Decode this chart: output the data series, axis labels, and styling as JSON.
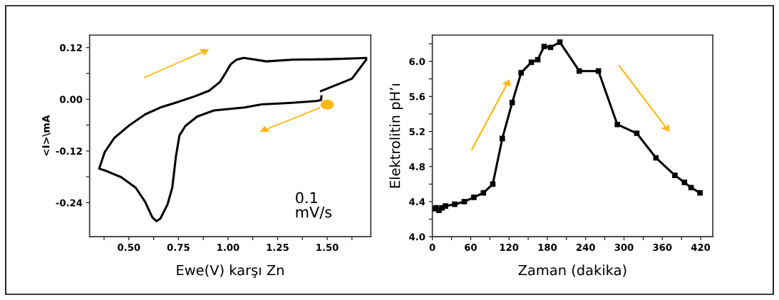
{
  "chart_data": [
    {
      "type": "line",
      "xlabel": "Ewe(V) karşı Zn",
      "ylabel": "<I>\\mA",
      "annotations": [
        "0.1\nmV/s"
      ],
      "xlim": [
        0.302,
        1.72
      ],
      "ylim": [
        -0.319,
        0.149
      ],
      "xticks": [
        {
          "value": 0.375,
          "label": null
        },
        {
          "value": 0.5,
          "label": "0.50"
        },
        {
          "value": 0.625,
          "label": null
        },
        0.75,
        {
          "value": 0.875,
          "label": null
        },
        {
          "value": 1.0,
          "label": "1.00"
        },
        {
          "value": 1.125,
          "label": null
        },
        1.25,
        {
          "value": 1.375,
          "label": null
        },
        {
          "value": 1.5,
          "label": "1.50"
        },
        {
          "value": 1.625,
          "label": null
        }
      ],
      "yticks": [
        -0.24,
        {
          "value": -0.18,
          "label": null
        },
        -0.12,
        {
          "value": -0.06,
          "label": null
        },
        {
          "value": 0.0,
          "label": "0.00"
        },
        {
          "value": 0.06,
          "label": null
        },
        0.12
      ],
      "grid": false,
      "marker": "none",
      "line_style": "solid",
      "series": [
        {
          "color": "#000000",
          "x": [
            1.471,
            1.469,
            1.445,
            1.325,
            1.169,
            1.085,
            0.929,
            0.845,
            0.785,
            0.755,
            0.737,
            0.719,
            0.695,
            0.659,
            0.639,
            0.618,
            0.582,
            0.534,
            0.462,
            0.39,
            0.35,
            0.354,
            0.378,
            0.426,
            0.498,
            0.582,
            0.665,
            0.749,
            0.833,
            0.905,
            0.959,
            0.989,
            1.013,
            1.043,
            1.079,
            1.121,
            1.193,
            1.325,
            1.505,
            1.697,
            1.697,
            1.625,
            1.469
          ],
          "values": [
            0.007,
            -0.002,
            -0.004,
            -0.008,
            -0.012,
            -0.019,
            -0.026,
            -0.04,
            -0.062,
            -0.084,
            -0.134,
            -0.205,
            -0.244,
            -0.277,
            -0.283,
            -0.274,
            -0.238,
            -0.205,
            -0.181,
            -0.167,
            -0.161,
            -0.156,
            -0.123,
            -0.09,
            -0.062,
            -0.035,
            -0.018,
            -0.006,
            0.007,
            0.02,
            0.04,
            0.062,
            0.081,
            0.092,
            0.096,
            0.093,
            0.088,
            0.092,
            0.093,
            0.096,
            0.092,
            0.048,
            0.019
          ]
        }
      ]
    },
    {
      "type": "line",
      "xlabel": "Zaman (dakika)",
      "ylabel": "Elektrolitin pH’ı",
      "xlim": [
        0,
        439
      ],
      "ylim": [
        4.0,
        6.3
      ],
      "xticks": [
        0,
        {
          "value": 30,
          "label": null
        },
        60,
        {
          "value": 90,
          "label": null
        },
        120,
        {
          "value": 150,
          "label": null
        },
        180,
        {
          "value": 210,
          "label": null
        },
        240,
        {
          "value": 270,
          "label": null
        },
        300,
        {
          "value": 330,
          "label": null
        },
        360,
        {
          "value": 390,
          "label": null
        },
        420
      ],
      "yticks": [
        {
          "value": 4.0,
          "label": "4.0"
        },
        {
          "value": 4.2,
          "label": null
        },
        4.4,
        {
          "value": 4.6,
          "label": null
        },
        4.8,
        {
          "value": 5.0,
          "label": null
        },
        5.2,
        {
          "value": 5.4,
          "label": null
        },
        5.6,
        {
          "value": 5.8,
          "label": null
        },
        {
          "value": 6.0,
          "label": "6.0"
        },
        {
          "value": 6.2,
          "label": null
        }
      ],
      "grid": false,
      "marker": "square",
      "line_style": "solid",
      "series": [
        {
          "color": "#000000",
          "x": [
            1.5,
            6,
            10.4,
            15,
            20.5,
            35,
            50,
            65,
            80,
            94.6,
            109.5,
            125,
            139,
            155,
            165,
            175,
            185,
            199.6,
            230,
            260,
            289.6,
            320,
            350,
            379.7,
            394.6,
            405,
            419
          ],
          "values": [
            4.32,
            4.33,
            4.3,
            4.33,
            4.35,
            4.37,
            4.4,
            4.45,
            4.5,
            4.6,
            5.12,
            5.53,
            5.87,
            5.99,
            6.02,
            6.17,
            6.16,
            6.22,
            5.89,
            5.89,
            5.28,
            5.18,
            4.9,
            4.7,
            4.62,
            4.56,
            4.5
          ]
        }
      ]
    }
  ]
}
